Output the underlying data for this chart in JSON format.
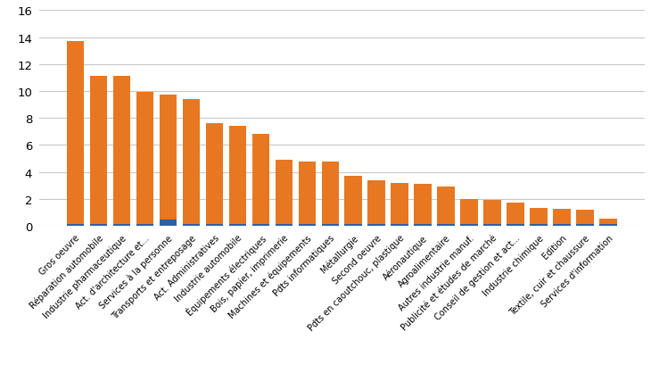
{
  "categories": [
    "Gros oeuvre",
    "Réparation automobile",
    "Industrie pharmaceutique",
    "Act. d'architecture et...",
    "Services à la personne",
    "Transports et entreposage",
    "Act. Administratives",
    "Industrie automobile",
    "Équipements électriques",
    "Bois, papier, imprimerie",
    "Machines et équipements",
    "Pdts informatiques",
    "Métallurgie",
    "Second oeuvre",
    "Pdts en caoutchouc, plastique",
    "Aéronautique",
    "Agroalimentaire",
    "Autres industrie manuf.",
    "Publicité et études de marché",
    "Conseil de gestion et act...",
    "Industrie chimique",
    "Edition",
    "Textile, cuir et chaussure",
    "Services d'information"
  ],
  "orange_values": [
    13.55,
    11.0,
    11.0,
    9.8,
    9.3,
    9.25,
    7.5,
    7.25,
    6.65,
    4.75,
    4.65,
    4.6,
    3.55,
    3.25,
    3.05,
    3.0,
    2.75,
    1.85,
    1.8,
    1.55,
    1.2,
    1.15,
    1.05,
    0.4
  ],
  "blue_values": [
    0.15,
    0.15,
    0.15,
    0.15,
    0.45,
    0.15,
    0.15,
    0.15,
    0.15,
    0.15,
    0.15,
    0.15,
    0.15,
    0.15,
    0.15,
    0.15,
    0.15,
    0.15,
    0.15,
    0.15,
    0.15,
    0.15,
    0.15,
    0.15
  ],
  "orange_color": "#E87722",
  "blue_color": "#2E5FA3",
  "ylim": [
    0,
    16
  ],
  "yticks": [
    0,
    2,
    4,
    6,
    8,
    10,
    12,
    14,
    16
  ],
  "grid_color": "#C8C8C8",
  "background_color": "#FFFFFF",
  "bar_width": 0.75,
  "label_fontsize": 7.0,
  "ytick_fontsize": 9.5
}
